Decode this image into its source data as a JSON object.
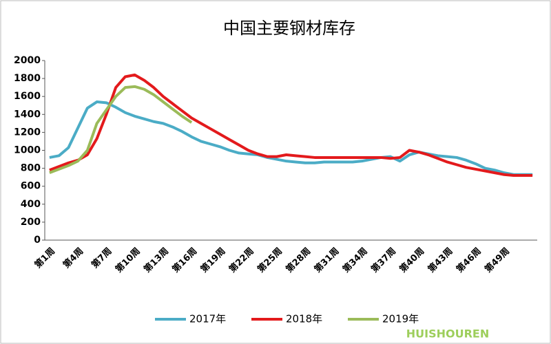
{
  "chart_data": {
    "type": "line",
    "title": "中国主要钢材库存",
    "categories": [
      "第1周",
      null,
      null,
      "第4周",
      null,
      null,
      "第7周",
      null,
      null,
      "第10周",
      null,
      null,
      "第13周",
      null,
      null,
      "第16周",
      null,
      null,
      "第19周",
      null,
      null,
      "第22周",
      null,
      null,
      "第25周",
      null,
      null,
      "第28周",
      null,
      null,
      "第31周",
      null,
      null,
      "第34周",
      null,
      null,
      "第37周",
      null,
      null,
      "第40周",
      null,
      null,
      "第43周",
      null,
      null,
      "第46周",
      null,
      null,
      "第49周",
      null,
      null,
      null
    ],
    "series": [
      {
        "name": "2017年",
        "color": "#4bacc6",
        "values": [
          920,
          940,
          1030,
          1250,
          1470,
          1540,
          1530,
          1480,
          1420,
          1380,
          1350,
          1320,
          1300,
          1260,
          1210,
          1150,
          1100,
          1070,
          1040,
          1000,
          970,
          960,
          950,
          920,
          900,
          880,
          870,
          860,
          860,
          870,
          870,
          870,
          870,
          880,
          900,
          920,
          930,
          880,
          950,
          980,
          960,
          940,
          930,
          920,
          890,
          850,
          800,
          780,
          750,
          730,
          730,
          730
        ]
      },
      {
        "name": "2018年",
        "color": "#e31a1c",
        "values": [
          780,
          820,
          860,
          890,
          950,
          1130,
          1400,
          1700,
          1820,
          1840,
          1780,
          1700,
          1600,
          1520,
          1440,
          1360,
          1300,
          1240,
          1180,
          1120,
          1060,
          1000,
          960,
          930,
          930,
          950,
          940,
          930,
          920,
          920,
          920,
          920,
          920,
          920,
          920,
          920,
          910,
          920,
          1000,
          980,
          950,
          910,
          870,
          840,
          810,
          790,
          770,
          750,
          730,
          720,
          720,
          720
        ]
      },
      {
        "name": "2019年",
        "color": "#9bbb59",
        "values": [
          750,
          790,
          830,
          880,
          1000,
          1300,
          1450,
          1600,
          1700,
          1710,
          1680,
          1620,
          1540,
          1460,
          1380,
          1310,
          null,
          null,
          null,
          null,
          null,
          null,
          null,
          null,
          null,
          null,
          null,
          null,
          null,
          null,
          null,
          null,
          null,
          null,
          null,
          null,
          null,
          null,
          null,
          null,
          null,
          null,
          null,
          null,
          null,
          null,
          null,
          null,
          null,
          null,
          null,
          null
        ]
      }
    ],
    "ylim": [
      0,
      2000
    ],
    "yticks": [
      0,
      200,
      400,
      600,
      800,
      1000,
      1200,
      1400,
      1600,
      1800,
      2000
    ],
    "grid": false,
    "legend": "bottom",
    "watermark": "HUISHOUREN"
  }
}
